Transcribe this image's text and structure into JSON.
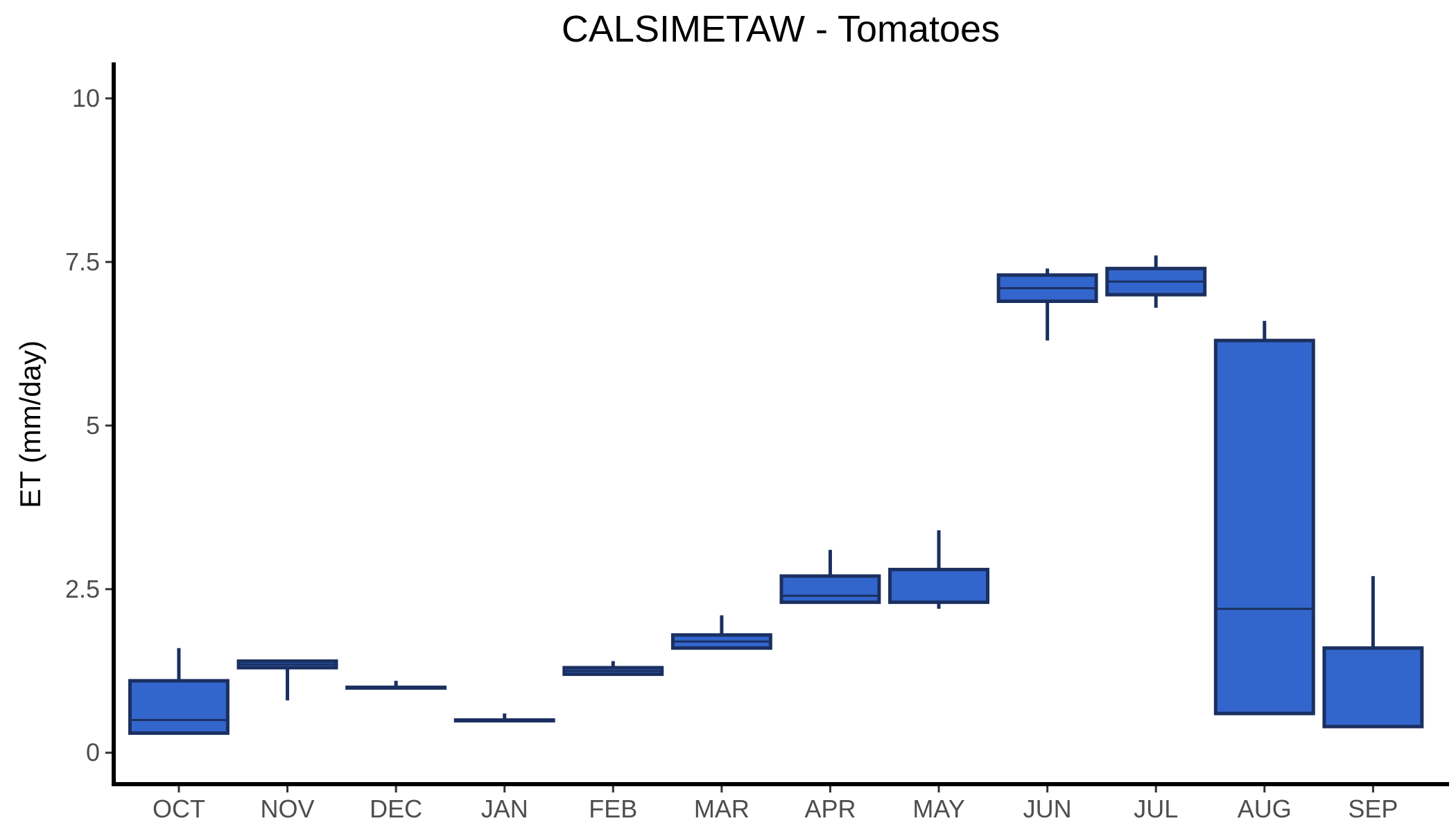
{
  "chart_data": {
    "type": "boxplot",
    "title": "CALSIMETAW - Tomatoes",
    "xlabel": "",
    "ylabel": "ET (mm/day)",
    "ylim": [
      -0.48,
      10.55
    ],
    "yticks": [
      0,
      2.5,
      5,
      7.5,
      10
    ],
    "ytick_labels": [
      "0",
      "2.5",
      "5",
      "7.5",
      "10"
    ],
    "grid": false,
    "legend": "none",
    "colors": {
      "fill": "#3366cc",
      "stroke": "#1b3060",
      "axis": "#000000",
      "tick_text": "#4d4d4d"
    },
    "categories": [
      "OCT",
      "NOV",
      "DEC",
      "JAN",
      "FEB",
      "MAR",
      "APR",
      "MAY",
      "JUN",
      "JUL",
      "AUG",
      "SEP"
    ],
    "boxes": [
      {
        "min": 0.3,
        "q1": 0.3,
        "median": 0.5,
        "q3": 1.1,
        "max": 1.6
      },
      {
        "min": 0.8,
        "q1": 1.3,
        "median": 1.35,
        "q3": 1.4,
        "max": 1.4
      },
      {
        "min": 1.0,
        "q1": 1.0,
        "median": 1.0,
        "q3": 1.0,
        "max": 1.1
      },
      {
        "min": 0.5,
        "q1": 0.5,
        "median": 0.5,
        "q3": 0.5,
        "max": 0.6
      },
      {
        "min": 1.2,
        "q1": 1.2,
        "median": 1.25,
        "q3": 1.3,
        "max": 1.4
      },
      {
        "min": 1.6,
        "q1": 1.6,
        "median": 1.7,
        "q3": 1.8,
        "max": 2.1
      },
      {
        "min": 2.3,
        "q1": 2.3,
        "median": 2.4,
        "q3": 2.7,
        "max": 3.1
      },
      {
        "min": 2.2,
        "q1": 2.3,
        "median": 2.3,
        "q3": 2.8,
        "max": 3.4
      },
      {
        "min": 6.3,
        "q1": 6.9,
        "median": 7.1,
        "q3": 7.3,
        "max": 7.4
      },
      {
        "min": 6.8,
        "q1": 7.0,
        "median": 7.2,
        "q3": 7.4,
        "max": 7.6
      },
      {
        "min": 0.6,
        "q1": 0.6,
        "median": 2.2,
        "q3": 6.3,
        "max": 6.6
      },
      {
        "min": 0.4,
        "q1": 0.4,
        "median": 0.4,
        "q3": 1.6,
        "max": 2.7
      }
    ]
  }
}
